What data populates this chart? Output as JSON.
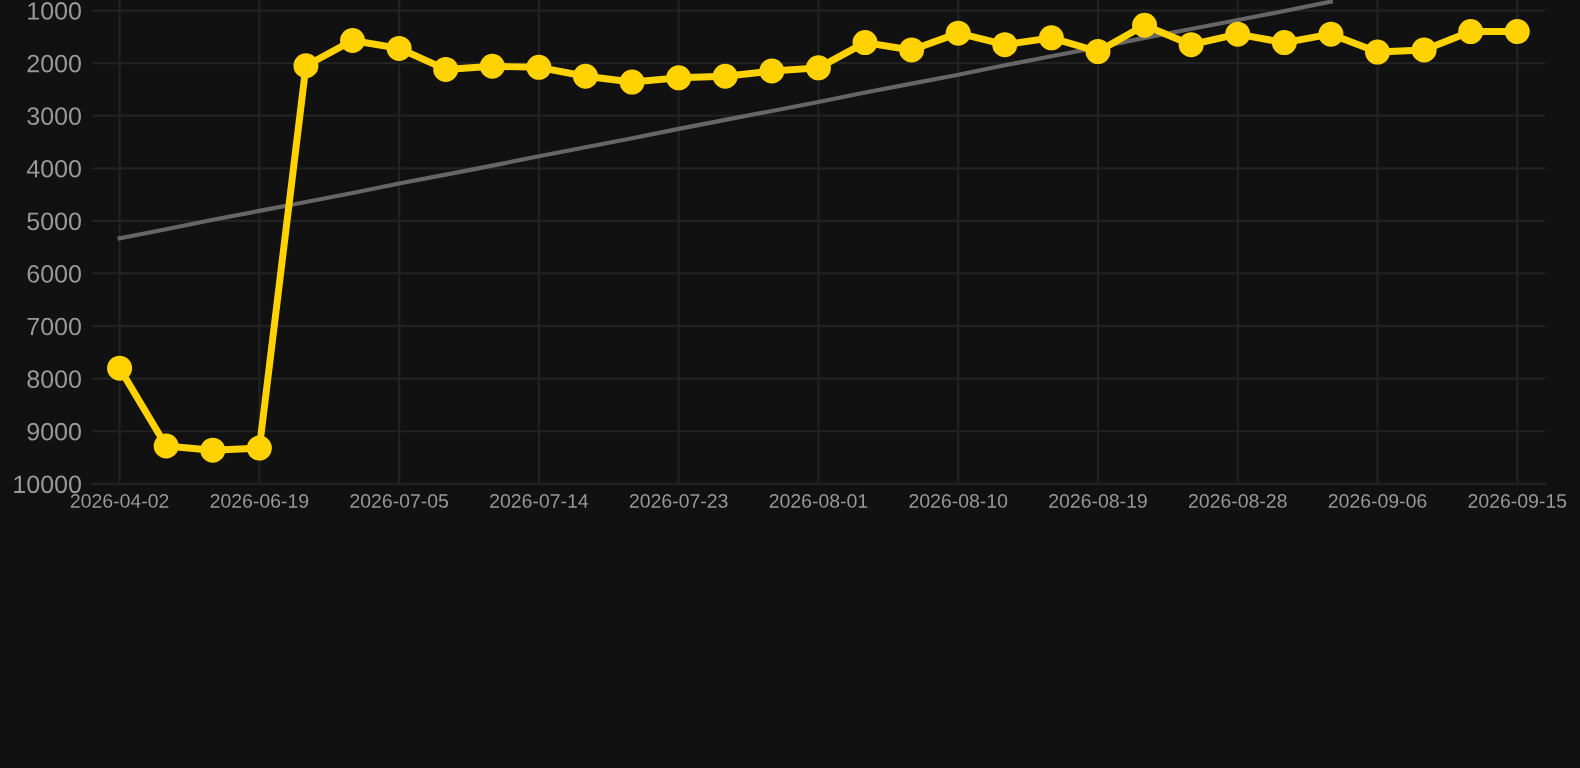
{
  "chart_data": {
    "type": "line",
    "categories": [
      "2026-04-02",
      null,
      null,
      "2026-06-19",
      null,
      null,
      "2026-07-05",
      null,
      null,
      "2026-07-14",
      null,
      null,
      "2026-07-23",
      null,
      null,
      "2026-08-01",
      null,
      null,
      "2026-08-10",
      null,
      null,
      "2026-08-19",
      null,
      null,
      "2026-08-28",
      null,
      null,
      "2026-09-06",
      null,
      null,
      "2026-09-15"
    ],
    "series": [
      {
        "color": "#ffd200",
        "marker": "circle",
        "values": [
          7800,
          9280,
          9360,
          9320,
          2050,
          1570,
          1720,
          2120,
          2060,
          2080,
          2250,
          2360,
          2280,
          2250,
          2150,
          2090,
          1610,
          1750,
          1430,
          1650,
          1520,
          1780,
          1280,
          1650,
          1450,
          1610,
          1450,
          1790,
          1750,
          1400,
          1400
        ]
      },
      {
        "color": "#666666",
        "marker": "none",
        "values": [
          5330,
          5160,
          4980,
          4810,
          4640,
          4470,
          4290,
          4120,
          3950,
          3770,
          3600,
          3430,
          3250,
          3080,
          2910,
          2740,
          2560,
          2390,
          2220,
          2040,
          1870,
          1700,
          1520,
          1350,
          1180,
          1010,
          830,
          null,
          null,
          null,
          null
        ]
      }
    ],
    "ylim": [
      10000,
      800
    ],
    "yticks": [
      1000,
      2000,
      3000,
      4000,
      5000,
      6000,
      7000,
      8000,
      9000,
      10000
    ],
    "grid": true,
    "line_style": "solid"
  }
}
